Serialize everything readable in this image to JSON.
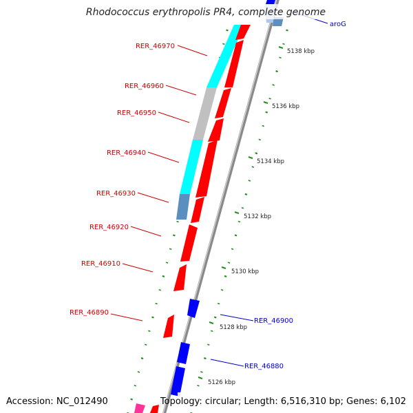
{
  "title": "Rhodococcus erythropolis PR4, complete genome",
  "footer": {
    "accession": "Accession: NC_012490",
    "stats": "Topology: circular; Length: 6,516,310 bp; Genes: 6,102"
  },
  "colors": {
    "forward": "#ff0000",
    "reverse": "#0000ff",
    "cyan": "#00ffff",
    "gray": "#c0c0c0",
    "steel": "#5a8fc0",
    "pink": "#ff3399",
    "tick": "#228b22",
    "backbone": "#909090",
    "forward_label": "#cc0000",
    "reverse_label": "#0000cc"
  },
  "left_labels": [
    {
      "id": "RER_46970",
      "text": "RER_46970"
    },
    {
      "id": "RER_46960",
      "text": "RER_46960"
    },
    {
      "id": "RER_46950",
      "text": "RER_46950"
    },
    {
      "id": "RER_46940",
      "text": "RER_46940"
    },
    {
      "id": "RER_46930",
      "text": "RER_46930"
    },
    {
      "id": "RER_46920",
      "text": "RER_46920"
    },
    {
      "id": "RER_46910",
      "text": "RER_46910"
    },
    {
      "id": "RER_46890",
      "text": "RER_46890"
    }
  ],
  "right_labels": [
    {
      "id": "aroG",
      "text": "aroG"
    },
    {
      "id": "RER_46900",
      "text": "RER_46900"
    },
    {
      "id": "RER_46880",
      "text": "RER_46880"
    }
  ],
  "scale_ticks": [
    {
      "kbp": 5138,
      "text": "5138 kbp"
    },
    {
      "kbp": 5136,
      "text": "5136 kbp"
    },
    {
      "kbp": 5134,
      "text": "5134 kbp"
    },
    {
      "kbp": 5132,
      "text": "5132 kbp"
    },
    {
      "kbp": 5130,
      "text": "5130 kbp"
    },
    {
      "kbp": 5128,
      "text": "5128 kbp"
    },
    {
      "kbp": 5126,
      "text": "5126 kbp"
    }
  ]
}
